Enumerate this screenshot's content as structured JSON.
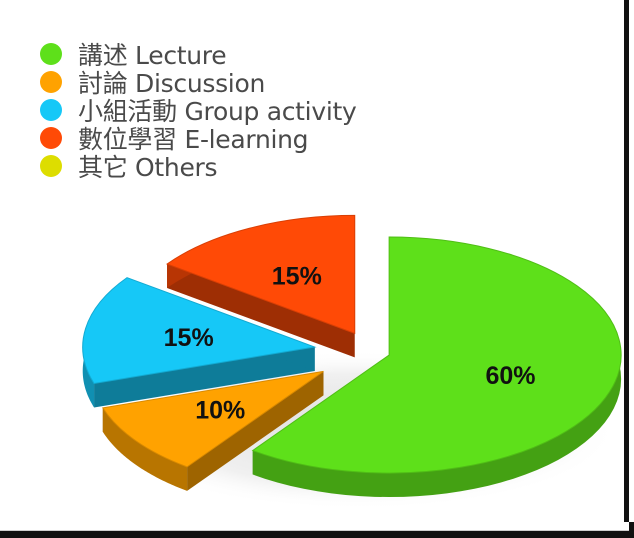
{
  "chart_data": {
    "type": "pie",
    "title": "",
    "categories": [
      "講述 Lecture",
      "討論 Discussion",
      "小組活動 Group activity",
      "數位學習 E-learning",
      "其它 Others"
    ],
    "values": [
      60,
      10,
      15,
      15,
      0
    ],
    "value_labels": [
      "60%",
      "10%",
      "15%",
      "15%",
      ""
    ],
    "colors": [
      "#5ee01a",
      "#ffa200",
      "#16c8f7",
      "#ff4a06",
      "#dddd00"
    ],
    "legend_position": "top-left",
    "style": "3d-exploded"
  }
}
